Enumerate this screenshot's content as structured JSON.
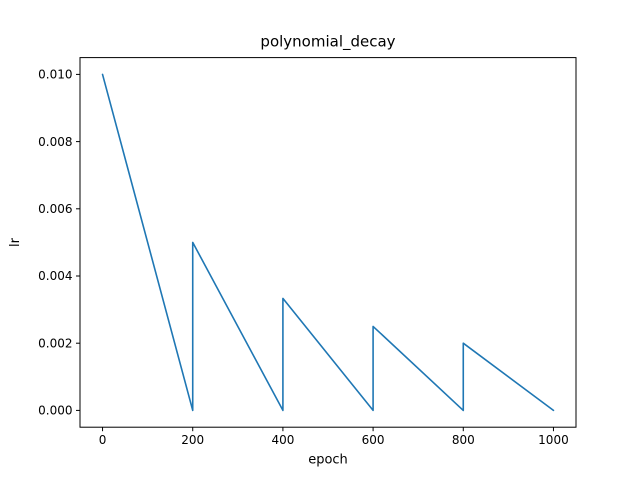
{
  "chart_data": {
    "type": "line",
    "title": "polynomial_decay",
    "xlabel": "epoch",
    "ylabel": "lr",
    "series": [
      {
        "name": "lr",
        "x": [
          0,
          200,
          200,
          400,
          400,
          600,
          600,
          800,
          800,
          1000
        ],
        "y": [
          0.01,
          0.0,
          0.005,
          0.0,
          0.003333,
          0.0,
          0.0025,
          0.0,
          0.002,
          0.0
        ]
      }
    ],
    "x_ticks": [
      0,
      200,
      400,
      600,
      800,
      1000
    ],
    "x_tick_labels": [
      "0",
      "200",
      "400",
      "600",
      "800",
      "1000"
    ],
    "y_ticks": [
      0.0,
      0.002,
      0.004,
      0.006,
      0.008,
      0.01
    ],
    "y_tick_labels": [
      "0.000",
      "0.002",
      "0.004",
      "0.006",
      "0.008",
      "0.010"
    ],
    "xlim": [
      -50,
      1050
    ],
    "ylim": [
      -0.0005,
      0.0105
    ],
    "grid": false,
    "legend": null,
    "line_color": "#1f77b4",
    "axis_color": "#000000",
    "background": "#ffffff"
  }
}
